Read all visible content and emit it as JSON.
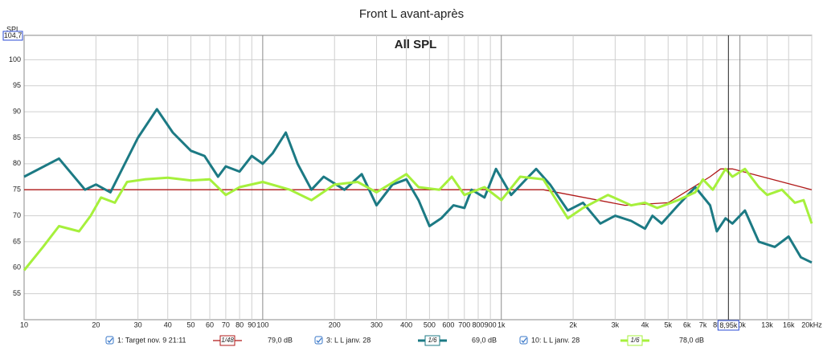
{
  "chart_data": {
    "type": "line",
    "title": "Front L avant-après",
    "subtitle": "All SPL",
    "y_axis_label": "SPL",
    "y_top": {
      "value": 104.7,
      "label": "104,7"
    },
    "log_x": true,
    "grid": true,
    "xlim": [
      10,
      20000
    ],
    "ylim": [
      50,
      104.7
    ],
    "xticks": [
      10,
      20,
      30,
      40,
      50,
      60,
      70,
      80,
      90,
      100,
      200,
      300,
      400,
      500,
      600,
      700,
      800,
      900,
      {
        "value": 1000,
        "label": "1k"
      },
      {
        "value": 2000,
        "label": "2k"
      },
      {
        "value": 3000,
        "label": "3k"
      },
      {
        "value": 4000,
        "label": "4k"
      },
      {
        "value": 5000,
        "label": "5k"
      },
      {
        "value": 6000,
        "label": "6k"
      },
      {
        "value": 7000,
        "label": "7k"
      },
      {
        "value": 8000,
        "label": "8k"
      },
      {
        "value": 10000,
        "label": "10k"
      },
      {
        "value": 13000,
        "label": "13k"
      },
      {
        "value": 16000,
        "label": "16k"
      },
      {
        "value": 20000,
        "label": "20kHz"
      }
    ],
    "yticks": [
      55,
      60,
      65,
      70,
      75,
      80,
      85,
      90,
      95,
      100
    ],
    "cursor": {
      "value": 8950,
      "label": "8,95k"
    },
    "series": [
      {
        "name": "1: Target nov. 9 21:11",
        "smoothing": "1/48",
        "readout": "79,0 dB",
        "color": "#b01818",
        "x": [
          10,
          1500,
          3300,
          5000,
          7500,
          8300,
          9300,
          20000
        ],
        "values": [
          75,
          75,
          72,
          72.5,
          77.5,
          79,
          79,
          75
        ]
      },
      {
        "name": "3: L L janv. 28",
        "smoothing": "1/6",
        "readout": "69,0 dB",
        "color": "#1c7a84",
        "x": [
          10,
          14,
          18,
          20,
          23,
          30,
          36,
          42,
          50,
          57,
          65,
          70,
          80,
          90,
          100,
          110,
          125,
          140,
          160,
          180,
          220,
          260,
          300,
          350,
          400,
          450,
          500,
          560,
          630,
          700,
          750,
          850,
          950,
          1100,
          1300,
          1400,
          1600,
          1900,
          2200,
          2600,
          3000,
          3500,
          4000,
          4300,
          4700,
          5500,
          6500,
          7500,
          8000,
          8700,
          9300,
          10500,
          12000,
          14000,
          16000,
          18000,
          20000
        ],
        "values": [
          77.5,
          81,
          75,
          76,
          74.5,
          85,
          90.5,
          86,
          82.5,
          81.5,
          77.5,
          79.5,
          78.5,
          81.5,
          80,
          82,
          86,
          80,
          75,
          77.5,
          75,
          78,
          72,
          76,
          77,
          73,
          68,
          69.5,
          72,
          71.5,
          75,
          73.5,
          79,
          74,
          77.5,
          79,
          76,
          71,
          72.5,
          68.5,
          70,
          69,
          67.5,
          70,
          68.5,
          72,
          75.5,
          72,
          67,
          69.5,
          68.5,
          71,
          65,
          64,
          66,
          62,
          61
        ]
      },
      {
        "name": "10: L L janv. 28",
        "smoothing": "1/6",
        "readout": "78,0 dB",
        "color": "#a6f03c",
        "x": [
          10,
          12,
          14,
          17,
          19,
          21,
          24,
          27,
          32,
          40,
          50,
          60,
          70,
          80,
          100,
          130,
          160,
          200,
          250,
          300,
          400,
          450,
          550,
          620,
          700,
          850,
          1000,
          1200,
          1500,
          1900,
          2200,
          2800,
          3500,
          4000,
          4500,
          5500,
          6500,
          7000,
          7700,
          8700,
          9300,
          10500,
          12000,
          13000,
          15000,
          17000,
          18500,
          20000
        ],
        "values": [
          59.5,
          64,
          68,
          67,
          70,
          73.5,
          72.5,
          76.5,
          77,
          77.3,
          76.8,
          77,
          74,
          75.5,
          76.5,
          75,
          73,
          76,
          76.5,
          74.5,
          78,
          75.5,
          75,
          77.5,
          74,
          75.5,
          73,
          77.5,
          77,
          69.5,
          71.5,
          74,
          72,
          72.5,
          71.5,
          73,
          74.5,
          77,
          75,
          79,
          77.5,
          79,
          75.5,
          74,
          75,
          72.5,
          73,
          68.5
        ]
      }
    ]
  }
}
